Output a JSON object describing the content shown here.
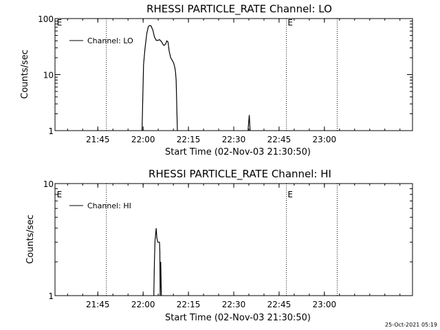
{
  "chart_data": [
    {
      "type": "line",
      "title": "RHESSI PARTICLE_RATE Channel: LO",
      "xlabel": "Start Time (02-Nov-03 21:30:50)",
      "ylabel": "Counts/sec",
      "xlim_min": [
        0,
        118.33
      ],
      "ylim": [
        1,
        100
      ],
      "yscale": "log",
      "yticks": [
        1,
        10,
        100
      ],
      "ytick_labels": [
        "1",
        "10",
        "100"
      ],
      "xticks_min": [
        14.17,
        29.17,
        44.17,
        59.17,
        74.17,
        89.17
      ],
      "xtick_labels": [
        "21:45",
        "22:00",
        "22:15",
        "22:30",
        "22:45",
        "23:00"
      ],
      "grid": false,
      "legend_placement": "top-left",
      "series": [
        {
          "name": "Channel: LO",
          "points": [
            [
              28.8,
              1
            ],
            [
              29.3,
              15
            ],
            [
              29.8,
              30
            ],
            [
              30.4,
              55
            ],
            [
              30.9,
              72
            ],
            [
              31.3,
              75
            ],
            [
              31.8,
              74
            ],
            [
              32.4,
              62
            ],
            [
              32.9,
              47
            ],
            [
              33.5,
              41
            ],
            [
              34.1,
              41
            ],
            [
              34.6,
              42
            ],
            [
              35.2,
              39
            ],
            [
              35.7,
              35
            ],
            [
              36.1,
              33
            ],
            [
              36.6,
              35
            ],
            [
              37.0,
              40
            ],
            [
              37.4,
              38
            ],
            [
              37.8,
              26
            ],
            [
              38.3,
              20
            ],
            [
              38.8,
              18
            ],
            [
              39.3,
              16
            ],
            [
              39.7,
              13
            ],
            [
              39.9,
              11
            ],
            [
              40.1,
              8
            ],
            [
              40.5,
              1
            ]
          ],
          "secondary_points": [
            [
              63.9,
              1
            ],
            [
              64.1,
              1.4
            ],
            [
              64.3,
              1.9
            ],
            [
              64.5,
              1.2
            ],
            [
              64.6,
              1
            ]
          ]
        }
      ],
      "vlines_min": [
        17.0,
        76.6,
        93.4
      ],
      "annotations": [
        {
          "text": "E",
          "x_min": 0.6
        },
        {
          "text": "E",
          "x_min": 77.0
        }
      ]
    },
    {
      "type": "line",
      "title": "RHESSI PARTICLE_RATE Channel: HI",
      "xlabel": "Start Time (02-Nov-03 21:30:50)",
      "ylabel": "Counts/sec",
      "xlim_min": [
        0,
        118.33
      ],
      "ylim": [
        1,
        10
      ],
      "yscale": "log",
      "yticks": [
        1,
        10
      ],
      "ytick_labels": [
        "1",
        "10"
      ],
      "xticks_min": [
        14.17,
        29.17,
        44.17,
        59.17,
        74.17,
        89.17
      ],
      "xtick_labels": [
        "21:45",
        "22:00",
        "22:15",
        "22:30",
        "22:45",
        "23:00"
      ],
      "grid": false,
      "legend_placement": "top-left",
      "series": [
        {
          "name": "Channel: HI",
          "points": [
            [
              32.7,
              1
            ],
            [
              32.9,
              2.0
            ],
            [
              33.1,
              3.1
            ],
            [
              33.5,
              4.0
            ],
            [
              33.7,
              3.3
            ],
            [
              34.0,
              3.0
            ],
            [
              34.6,
              3.0
            ],
            [
              34.7,
              2.5
            ],
            [
              34.8,
              1
            ],
            [
              35.0,
              2.0
            ],
            [
              35.2,
              1
            ]
          ]
        }
      ],
      "vlines_min": [
        17.0,
        76.6,
        93.4
      ],
      "annotations": [
        {
          "text": "E",
          "x_min": 0.6
        },
        {
          "text": "E",
          "x_min": 77.0
        }
      ]
    }
  ],
  "footer": {
    "timestamp": "25-Oct-2021 05:19"
  }
}
